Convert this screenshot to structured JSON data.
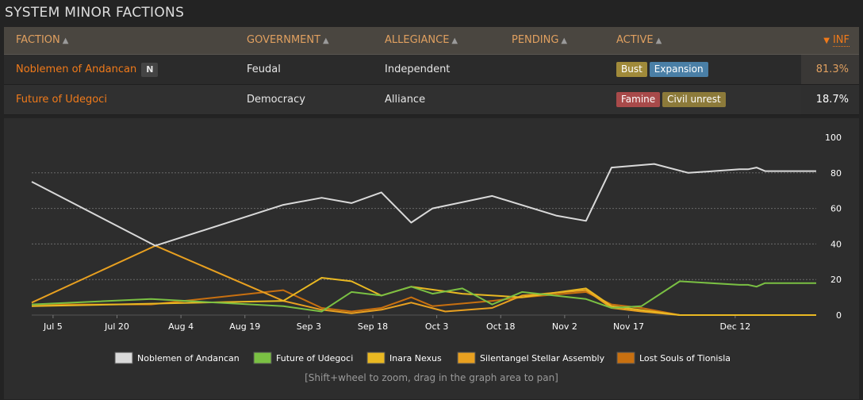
{
  "section_title": "SYSTEM MINOR FACTIONS",
  "table": {
    "headers": {
      "faction": "FACTION",
      "government": "GOVERNMENT",
      "allegiance": "ALLEGIANCE",
      "pending": "PENDING",
      "active": "ACTIVE",
      "inf": "INF"
    },
    "rows": [
      {
        "faction": "Noblemen of Andancan",
        "badge": "N",
        "government": "Feudal",
        "allegiance": "Independent",
        "pending": "",
        "active": [
          {
            "label": "Bust",
            "color": "#a08a3a"
          },
          {
            "label": "Expansion",
            "color": "#4a7fa6"
          }
        ],
        "inf": "81.3%",
        "inf_color": "#e0a060"
      },
      {
        "faction": "Future of Udegoci",
        "badge": "",
        "government": "Democracy",
        "allegiance": "Alliance",
        "pending": "",
        "active": [
          {
            "label": "Famine",
            "color": "#a84a4a"
          },
          {
            "label": "Civil unrest",
            "color": "#8c7a3a"
          }
        ],
        "inf": "18.7%",
        "inf_color": "#ffffff"
      }
    ]
  },
  "chart_data": {
    "type": "line",
    "x_ticks": [
      "Jul 5",
      "Jul 20",
      "Aug 4",
      "Aug 19",
      "Sep 3",
      "Sep 18",
      "Oct 3",
      "Oct 18",
      "Nov 2",
      "Nov 17",
      "Dec 12"
    ],
    "y_ticks": [
      "0",
      "20",
      "40",
      "60",
      "80",
      "100"
    ],
    "ylim": [
      0,
      100
    ],
    "grid": true,
    "legend_position": "bottom",
    "series": [
      {
        "name": "Noblemen of Andancan",
        "color": "#d9d9d9",
        "points": [
          [
            "Jun 30",
            75
          ],
          [
            "Jul 29",
            39
          ],
          [
            "Aug 28",
            62
          ],
          [
            "Sep 6",
            66
          ],
          [
            "Sep 13",
            63
          ],
          [
            "Sep 20",
            69
          ],
          [
            "Sep 27",
            52
          ],
          [
            "Oct 2",
            60
          ],
          [
            "Oct 16",
            67
          ],
          [
            "Oct 31",
            56
          ],
          [
            "Nov 7",
            53
          ],
          [
            "Nov 13",
            83
          ],
          [
            "Nov 23",
            85
          ],
          [
            "Dec 1",
            80
          ],
          [
            "Dec 13",
            82
          ],
          [
            "Dec 15",
            82
          ],
          [
            "Dec 17",
            83
          ],
          [
            "Dec 19",
            81
          ],
          [
            "Dec 22",
            81
          ],
          [
            "Dec 31",
            81
          ]
        ]
      },
      {
        "name": "Future of Udegoci",
        "color": "#7ac043",
        "points": [
          [
            "Jun 30",
            6
          ],
          [
            "Jul 28",
            9
          ],
          [
            "Aug 28",
            5
          ],
          [
            "Sep 6",
            2
          ],
          [
            "Sep 13",
            13
          ],
          [
            "Sep 20",
            11
          ],
          [
            "Sep 27",
            16
          ],
          [
            "Oct 2",
            12
          ],
          [
            "Oct 9",
            15
          ],
          [
            "Oct 16",
            6
          ],
          [
            "Oct 23",
            13
          ],
          [
            "Nov 7",
            9
          ],
          [
            "Nov 13",
            4
          ],
          [
            "Nov 20",
            5
          ],
          [
            "Nov 29",
            19
          ],
          [
            "Dec 13",
            17
          ],
          [
            "Dec 15",
            17
          ],
          [
            "Dec 17",
            16
          ],
          [
            "Dec 19",
            18
          ],
          [
            "Dec 31",
            18
          ]
        ]
      },
      {
        "name": "Inara Nexus",
        "color": "#e9b822",
        "points": [
          [
            "Jun 30",
            5
          ],
          [
            "Aug 28",
            8
          ],
          [
            "Sep 6",
            21
          ],
          [
            "Sep 13",
            19
          ],
          [
            "Sep 20",
            11
          ],
          [
            "Sep 27",
            16
          ],
          [
            "Oct 9",
            12
          ],
          [
            "Oct 23",
            10
          ],
          [
            "Nov 7",
            15
          ],
          [
            "Nov 13",
            5
          ],
          [
            "Nov 29",
            0
          ],
          [
            "Dec 31",
            0
          ]
        ]
      },
      {
        "name": "Silentangel Stellar Assembly",
        "color": "#e8a020",
        "points": [
          [
            "Jun 30",
            7
          ],
          [
            "Jul 29",
            39
          ],
          [
            "Aug 28",
            8
          ],
          [
            "Sep 6",
            3
          ],
          [
            "Sep 13",
            1
          ],
          [
            "Sep 20",
            3
          ],
          [
            "Sep 27",
            7
          ],
          [
            "Oct 5",
            2
          ],
          [
            "Oct 16",
            4
          ],
          [
            "Oct 23",
            11
          ],
          [
            "Nov 7",
            14
          ],
          [
            "Nov 13",
            4
          ],
          [
            "Nov 20",
            2
          ],
          [
            "Nov 29",
            0
          ],
          [
            "Dec 31",
            0
          ]
        ]
      },
      {
        "name": "Lost Souls of Tionisla",
        "color": "#c87010",
        "points": [
          [
            "Jun 30",
            6
          ],
          [
            "Jul 28",
            6
          ],
          [
            "Aug 28",
            14
          ],
          [
            "Sep 6",
            4
          ],
          [
            "Sep 13",
            2
          ],
          [
            "Sep 20",
            4
          ],
          [
            "Sep 27",
            10
          ],
          [
            "Oct 2",
            5
          ],
          [
            "Oct 16",
            8
          ],
          [
            "Oct 23",
            10
          ],
          [
            "Nov 7",
            13
          ],
          [
            "Nov 13",
            6
          ],
          [
            "Nov 20",
            4
          ],
          [
            "Nov 29",
            0
          ],
          [
            "Dec 31",
            0
          ]
        ]
      }
    ]
  },
  "hint": "[Shift+wheel to zoom, drag in the graph area to pan]"
}
